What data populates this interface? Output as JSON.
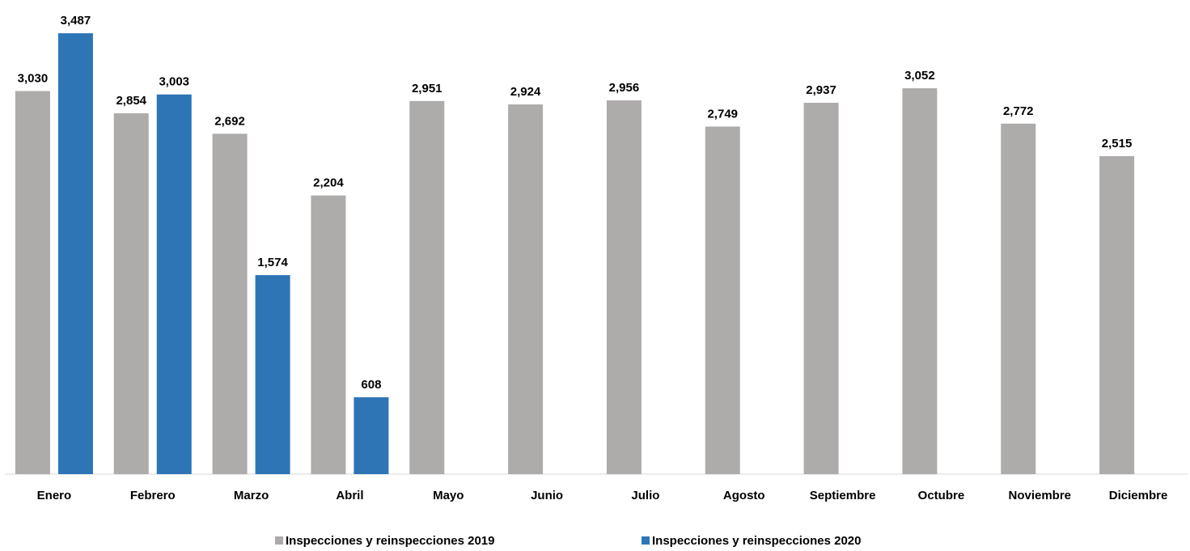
{
  "chart_data": {
    "type": "bar",
    "categories": [
      "Enero",
      "Febrero",
      "Marzo",
      "Abril",
      "Mayo",
      "Junio",
      "Julio",
      "Agosto",
      "Septiembre",
      "Octubre",
      "Noviembre",
      "Diciembre"
    ],
    "series": [
      {
        "name": "Inspecciones y reinspecciones 2019",
        "color": "#aeabab",
        "values": [
          3030,
          2854,
          2692,
          2204,
          2951,
          2924,
          2956,
          2749,
          2937,
          3052,
          2772,
          2515
        ],
        "value_labels": [
          "3,030",
          "2,854",
          "2,692",
          "2,204",
          "2,951",
          "2,924",
          "2,956",
          "2,749",
          "2,937",
          "3,052",
          "2,772",
          "2,515"
        ]
      },
      {
        "name": "Inspecciones y reinspecciones 2020",
        "color": "#2e75b6",
        "values": [
          3487,
          3003,
          1574,
          608,
          null,
          null,
          null,
          null,
          null,
          null,
          null,
          null
        ],
        "value_labels": [
          "3,487",
          "3,003",
          "1,574",
          "608",
          null,
          null,
          null,
          null,
          null,
          null,
          null,
          null
        ]
      }
    ],
    "ylim": [
      0,
      3750
    ],
    "legend": "bottom"
  }
}
